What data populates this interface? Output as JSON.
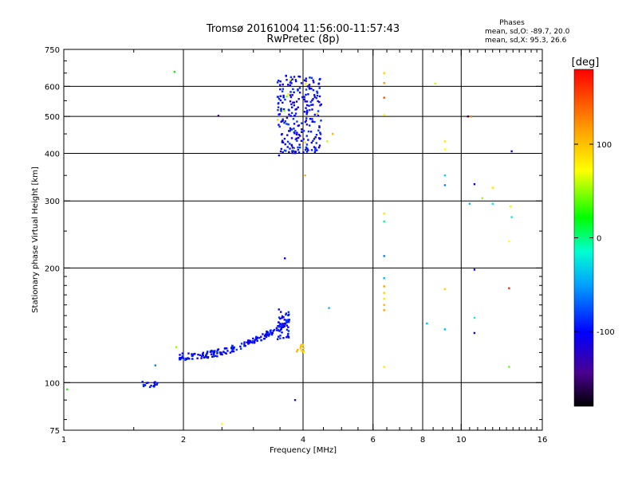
{
  "chart_data": {
    "type": "scatter",
    "title": "Tromsø 20161004 11:56:00-11:57:43",
    "subtitle": "RwPretec (8p)",
    "xlabel": "Frequency [MHz]",
    "ylabel": "Stationary phase Virtual Height [km]",
    "x_scale": "log2",
    "y_scale": "log",
    "xlim": [
      1,
      16
    ],
    "ylim": [
      75,
      750
    ],
    "x_ticks": [
      1,
      2,
      4,
      6,
      8,
      10,
      16
    ],
    "y_ticks": [
      75,
      100,
      200,
      300,
      400,
      500,
      600,
      750
    ],
    "x_gridlines": [
      2,
      4,
      6,
      8,
      10
    ],
    "y_gridlines": [
      100,
      200,
      300,
      400,
      500,
      600
    ],
    "grid": true,
    "phase_stats": {
      "heading": "Phases",
      "line1": "mean, sd,O: -89.7, 20.0",
      "line2": "mean, sd,X:  95.3, 26.6"
    },
    "colorbar": {
      "label": "[deg]",
      "range": [
        -180,
        180
      ],
      "ticks": [
        {
          "value": 100,
          "label": "100"
        },
        {
          "value": 0,
          "label": "0"
        },
        {
          "value": -100,
          "label": "-100"
        }
      ]
    },
    "clusters": [
      {
        "name": "low-band trace",
        "x_range": [
          1.55,
          1.72
        ],
        "y_range": [
          97,
          101
        ],
        "count": 18,
        "phase": -100
      },
      {
        "name": "E-layer trace",
        "x_range": [
          1.95,
          3.7
        ],
        "y_range": [
          115,
          152
        ],
        "count": 190,
        "phase": -100
      },
      {
        "name": "E-layer cusp",
        "x_range": [
          3.45,
          3.7
        ],
        "y_range": [
          130,
          158
        ],
        "count": 40,
        "phase": -100
      },
      {
        "name": "F-layer column",
        "x_range": [
          3.45,
          4.45
        ],
        "y_range": [
          400,
          640
        ],
        "count": 260,
        "phase": -100
      },
      {
        "name": "yellow group near 4 MHz",
        "x_range": [
          3.85,
          4.05
        ],
        "y_range": [
          120,
          126
        ],
        "count": 14,
        "phase": 120
      }
    ],
    "points": [
      {
        "x": 1.02,
        "y": 96,
        "phase": 10
      },
      {
        "x": 1.9,
        "y": 655,
        "phase": 0
      },
      {
        "x": 1.92,
        "y": 124,
        "phase": 60
      },
      {
        "x": 2.45,
        "y": 502,
        "phase": -160
      },
      {
        "x": 2.5,
        "y": 78,
        "phase": 100
      },
      {
        "x": 1.7,
        "y": 111,
        "phase": -60
      },
      {
        "x": 3.6,
        "y": 212,
        "phase": -100
      },
      {
        "x": 3.48,
        "y": 395,
        "phase": -100
      },
      {
        "x": 3.82,
        "y": 90,
        "phase": -140
      },
      {
        "x": 4.05,
        "y": 350,
        "phase": 130
      },
      {
        "x": 4.6,
        "y": 430,
        "phase": 80
      },
      {
        "x": 4.65,
        "y": 157,
        "phase": -40
      },
      {
        "x": 4.75,
        "y": 450,
        "phase": 130
      },
      {
        "x": 6.4,
        "y": 650,
        "phase": 120
      },
      {
        "x": 6.4,
        "y": 612,
        "phase": 140
      },
      {
        "x": 6.4,
        "y": 560,
        "phase": 160
      },
      {
        "x": 6.4,
        "y": 505,
        "phase": 100
      },
      {
        "x": 6.4,
        "y": 278,
        "phase": 110
      },
      {
        "x": 6.4,
        "y": 265,
        "phase": -10
      },
      {
        "x": 6.4,
        "y": 215,
        "phase": -60
      },
      {
        "x": 6.4,
        "y": 188,
        "phase": -40
      },
      {
        "x": 6.4,
        "y": 179,
        "phase": 140
      },
      {
        "x": 6.4,
        "y": 172,
        "phase": 120
      },
      {
        "x": 6.4,
        "y": 166,
        "phase": 110
      },
      {
        "x": 6.4,
        "y": 160,
        "phase": 130
      },
      {
        "x": 6.4,
        "y": 155,
        "phase": 140
      },
      {
        "x": 6.4,
        "y": 110,
        "phase": 110
      },
      {
        "x": 8.2,
        "y": 143,
        "phase": -40
      },
      {
        "x": 8.6,
        "y": 610,
        "phase": 80
      },
      {
        "x": 9.1,
        "y": 430,
        "phase": 110
      },
      {
        "x": 9.1,
        "y": 410,
        "phase": 100
      },
      {
        "x": 9.1,
        "y": 350,
        "phase": -30
      },
      {
        "x": 9.1,
        "y": 330,
        "phase": -60
      },
      {
        "x": 9.1,
        "y": 176,
        "phase": 120
      },
      {
        "x": 9.1,
        "y": 138,
        "phase": -40
      },
      {
        "x": 10.4,
        "y": 500,
        "phase": -160
      },
      {
        "x": 10.6,
        "y": 500,
        "phase": 150
      },
      {
        "x": 10.5,
        "y": 295,
        "phase": -40
      },
      {
        "x": 10.8,
        "y": 332,
        "phase": -100
      },
      {
        "x": 10.8,
        "y": 198,
        "phase": -100
      },
      {
        "x": 10.8,
        "y": 148,
        "phase": -20
      },
      {
        "x": 10.8,
        "y": 135,
        "phase": -110
      },
      {
        "x": 11.3,
        "y": 305,
        "phase": 60
      },
      {
        "x": 12.0,
        "y": 325,
        "phase": 110
      },
      {
        "x": 12.0,
        "y": 295,
        "phase": -20
      },
      {
        "x": 13.4,
        "y": 405,
        "phase": -110
      },
      {
        "x": 13.3,
        "y": 290,
        "phase": 90
      },
      {
        "x": 13.4,
        "y": 272,
        "phase": -20
      },
      {
        "x": 13.2,
        "y": 235,
        "phase": 100
      },
      {
        "x": 13.2,
        "y": 177,
        "phase": 170
      },
      {
        "x": 13.2,
        "y": 110,
        "phase": 40
      }
    ]
  }
}
